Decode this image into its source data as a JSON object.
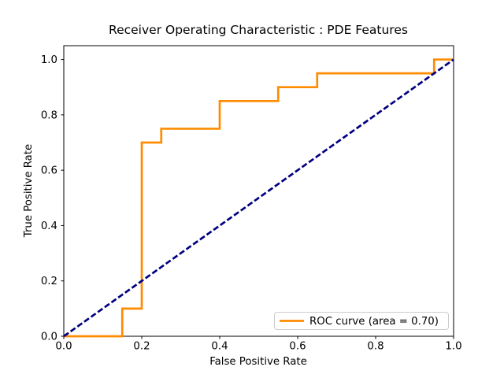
{
  "chart_data": {
    "type": "line",
    "title": "Receiver Operating Characteristic : PDE Features",
    "xlabel": "False Positive Rate",
    "ylabel": "True Positive Rate",
    "xlim": [
      0.0,
      1.0
    ],
    "ylim": [
      0.0,
      1.05
    ],
    "xticks": [
      0.0,
      0.2,
      0.4,
      0.6,
      0.8,
      1.0
    ],
    "yticks": [
      0.0,
      0.2,
      0.4,
      0.6,
      0.8,
      1.0
    ],
    "tick_decimals": 1,
    "grid": false,
    "background_color": "#ffffff",
    "frame_color": "#000000",
    "legend": {
      "position": "lower right",
      "label": "ROC curve (area = 0.70)",
      "area_value": "0.70",
      "border_color": "#cccccc",
      "fill_color": "#ffffff"
    },
    "series": [
      {
        "id": "roc-curve",
        "name": "ROC curve (area = 0.70)",
        "color": "#ff8c00",
        "style": "solid",
        "line_width": 2.7,
        "in_legend": true,
        "x": [
          0.0,
          0.15,
          0.15,
          0.2,
          0.2,
          0.25,
          0.25,
          0.4,
          0.4,
          0.55,
          0.55,
          0.65,
          0.65,
          0.95,
          0.95,
          1.0
        ],
        "y": [
          0.0,
          0.0,
          0.1,
          0.1,
          0.7,
          0.7,
          0.75,
          0.75,
          0.85,
          0.85,
          0.9,
          0.9,
          0.95,
          0.95,
          1.0,
          1.0
        ]
      },
      {
        "id": "chance-diagonal",
        "name": "chance diagonal",
        "color": "#000080",
        "style": "dashed",
        "line_width": 2.7,
        "in_legend": false,
        "x": [
          0.0,
          1.0
        ],
        "y": [
          0.0,
          1.0
        ]
      }
    ]
  }
}
